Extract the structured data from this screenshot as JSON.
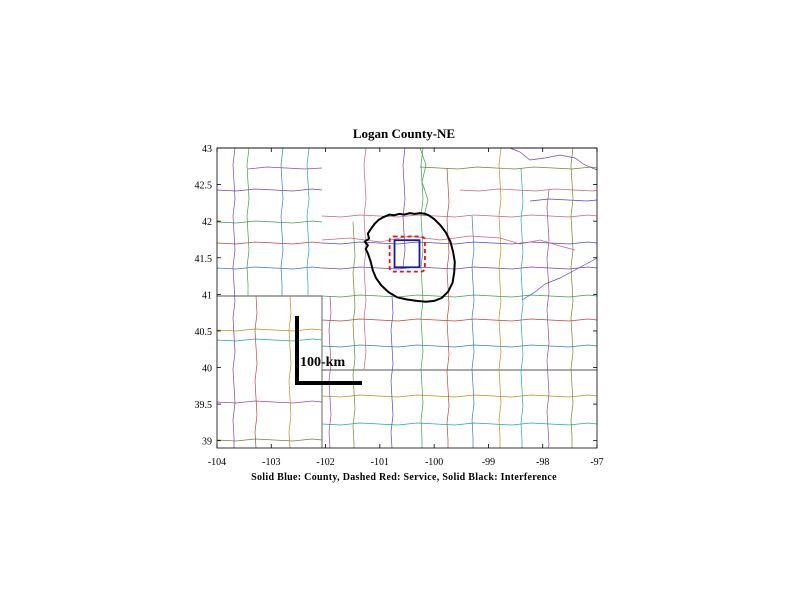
{
  "title": "Logan County-NE",
  "caption": "Solid Blue: County, Dashed Red: Service, Solid Black: Interference",
  "scale_bar_label": "100-km",
  "chart_data": {
    "type": "map",
    "title": "Logan County-NE",
    "xlim": [
      -104,
      -97
    ],
    "ylim": [
      38.9,
      43
    ],
    "x_ticks": [
      -104,
      -103,
      -102,
      -101,
      -100,
      -99,
      -98,
      -97
    ],
    "x_tick_labels": [
      "-104",
      "-103",
      "-102",
      "-101",
      "-100",
      "-99",
      "-98",
      "-97"
    ],
    "y_ticks": [
      39,
      39.5,
      40,
      40.5,
      41,
      41.5,
      42,
      42.5,
      43
    ],
    "y_tick_labels": [
      "39",
      "39.5",
      "40",
      "40.5",
      "41",
      "41.5",
      "42",
      "42.5",
      "43"
    ],
    "county": {
      "color": "#1a1aa0",
      "lon": [
        -100.73,
        -100.27
      ],
      "lat": [
        41.37,
        41.74
      ]
    },
    "service": {
      "color": "#ee1111",
      "lon": [
        -100.82,
        -100.17
      ],
      "lat": [
        41.31,
        41.79
      ]
    },
    "interference": {
      "color": "#000000",
      "lon": [
        -100.1,
        -100.0,
        -99.88,
        -99.78,
        -99.7,
        -99.65,
        -99.62,
        -99.63,
        -99.66,
        -99.74,
        -99.86,
        -100.0,
        -100.15,
        -100.32,
        -100.5,
        -100.68,
        -100.84,
        -100.97,
        -101.07,
        -101.13,
        -101.17,
        -101.22,
        -101.26,
        -101.22,
        -101.28,
        -101.2,
        -101.22,
        -101.16,
        -101.1,
        -101.02,
        -100.92,
        -100.82,
        -100.74,
        -100.64,
        -100.55,
        -100.45,
        -100.36,
        -100.26,
        -100.16,
        -100.1
      ],
      "lat": [
        42.08,
        42.03,
        41.94,
        41.84,
        41.72,
        41.58,
        41.44,
        41.3,
        41.16,
        41.04,
        40.95,
        40.91,
        40.9,
        40.91,
        40.93,
        40.96,
        41.03,
        41.12,
        41.22,
        41.33,
        41.45,
        41.56,
        41.62,
        41.67,
        41.72,
        41.76,
        41.83,
        41.9,
        41.96,
        42.02,
        42.06,
        42.09,
        42.08,
        42.1,
        42.09,
        42.11,
        42.1,
        42.11,
        42.1,
        42.08
      ]
    },
    "scale_bar_km": 100
  }
}
